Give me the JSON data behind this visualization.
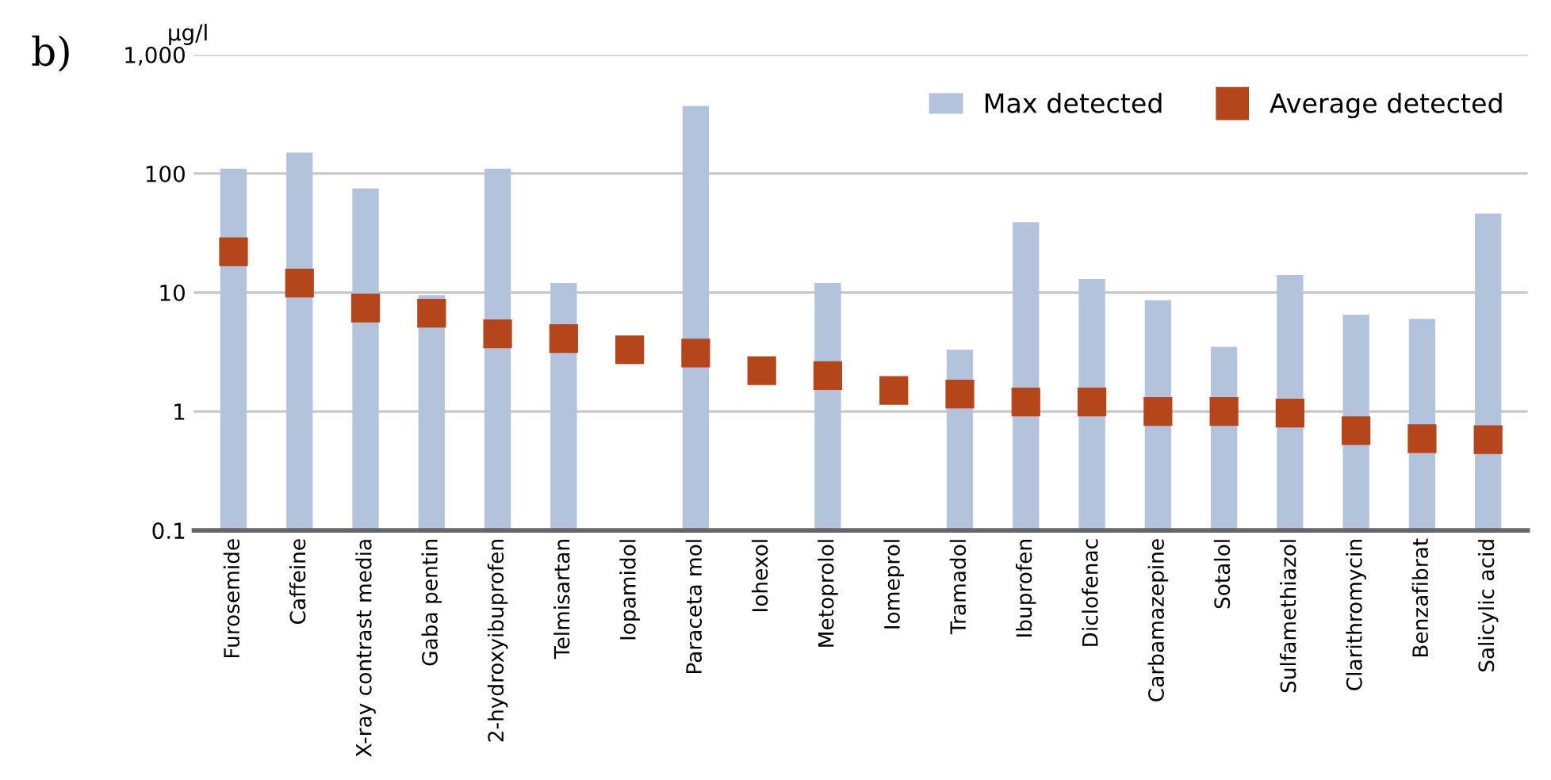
{
  "chart_data": {
    "type": "bar",
    "log": true,
    "ylabel": "µg/l",
    "annotations": [
      "b)"
    ],
    "categories": [
      "Furosemide",
      "Caffeine",
      "X-ray contrast media",
      "Gaba pentin",
      "2-hydroxyibuprofen",
      "Telmisartan",
      "Iopamidol",
      "Paraceta mol",
      "Iohexol",
      "Metoprolol",
      "Iomeprol",
      "Tramadol",
      "Ibuprofen",
      "Diclofenac",
      "Carbamazepine",
      "Sotalol",
      "Sulfamethiazol",
      "Clarithromycin",
      "Benzafibrat",
      "Salicylic acid"
    ],
    "series": [
      {
        "name": "Max detected",
        "color": "#b4c3dc",
        "values": [
          110,
          150,
          75,
          9.5,
          110,
          12,
          null,
          370,
          null,
          12,
          null,
          3.3,
          39,
          13,
          8.6,
          3.5,
          14,
          6.5,
          6,
          46
        ]
      },
      {
        "name": "Average detected",
        "type": "scatter",
        "marker": "square",
        "color": "#b5461c",
        "values": [
          22,
          12,
          7.4,
          6.7,
          4.5,
          4.1,
          3.3,
          3.1,
          2.2,
          2.0,
          1.5,
          1.4,
          1.2,
          1.2,
          1.0,
          1.0,
          0.97,
          0.69,
          0.59,
          0.58
        ]
      }
    ],
    "ylim": [
      0.1,
      1000
    ],
    "yticks": [
      {
        "value": 0.1,
        "label": "0.1"
      },
      1,
      10,
      100,
      {
        "value": 1000,
        "label": "1,000"
      }
    ],
    "grid": "y",
    "legend": "top right"
  }
}
